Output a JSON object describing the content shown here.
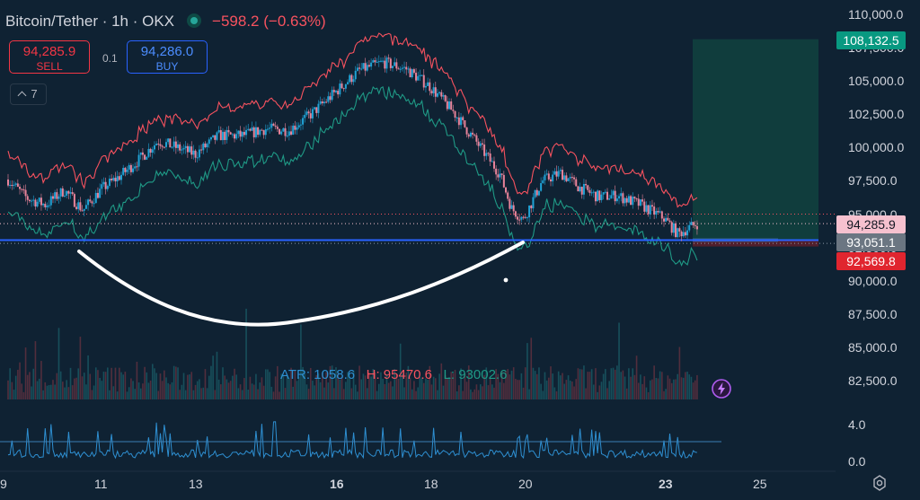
{
  "header": {
    "symbol": "Bitcoin/Tether · 1h · OKX",
    "change": "−598.2 (−0.63%)"
  },
  "trade": {
    "sell_price": "94,285.9",
    "sell_label": "SELL",
    "quantity": "0.1",
    "buy_price": "94,286.0",
    "buy_label": "BUY",
    "indicators_count": "7"
  },
  "y_axis": {
    "ticks": [
      "110,000.0",
      "107,500.0",
      "105,000.0",
      "102,500.0",
      "100,000.0",
      "97,500.0",
      "95,000.0",
      "92,500.0",
      "90,000.0",
      "87,500.0",
      "85,000.0",
      "82,500.0"
    ],
    "osc_ticks": [
      "4.0",
      "0.0"
    ]
  },
  "price_labels": {
    "target": "108,132.5",
    "current": "94,285.9",
    "entry": "93,051.1",
    "stop": "92,569.8"
  },
  "x_axis": {
    "ticks": [
      "9",
      "11",
      "13",
      "16",
      "18",
      "20",
      "23",
      "25"
    ]
  },
  "atr_legend": {
    "atr": "ATR: 1058.6",
    "high": "H: 95470.6",
    "low": "L: 93002.6"
  },
  "colors": {
    "background": "#0f2233",
    "up": "#1fa3d6",
    "down": "#e8839a",
    "upper_band": "#f7525f",
    "lower_band": "#1f9a86",
    "support_line": "#2962ff",
    "target_zone": "#11403e",
    "atr": "#2e8fd1",
    "drawing": "#ffffff"
  },
  "chart_data": {
    "type": "candlestick",
    "symbol": "Bitcoin/Tether",
    "interval": "1h",
    "exchange": "OKX",
    "ylim": [
      80000,
      110000
    ],
    "x_dates": [
      "9",
      "11",
      "13",
      "16",
      "18",
      "20",
      "23",
      "25"
    ],
    "price_path": [
      {
        "x": 9.0,
        "close": 97600
      },
      {
        "x": 9.4,
        "close": 96200
      },
      {
        "x": 9.8,
        "close": 95700
      },
      {
        "x": 10.2,
        "close": 96800
      },
      {
        "x": 10.6,
        "close": 95300
      },
      {
        "x": 11.0,
        "close": 96900
      },
      {
        "x": 11.4,
        "close": 97900
      },
      {
        "x": 11.8,
        "close": 99100
      },
      {
        "x": 12.2,
        "close": 100500
      },
      {
        "x": 12.6,
        "close": 100000
      },
      {
        "x": 13.0,
        "close": 99500
      },
      {
        "x": 13.5,
        "close": 100900
      },
      {
        "x": 14.0,
        "close": 100900
      },
      {
        "x": 14.5,
        "close": 101400
      },
      {
        "x": 15.0,
        "close": 101300
      },
      {
        "x": 15.5,
        "close": 102600
      },
      {
        "x": 16.0,
        "close": 104200
      },
      {
        "x": 16.5,
        "close": 105800
      },
      {
        "x": 17.0,
        "close": 106400
      },
      {
        "x": 17.5,
        "close": 105900
      },
      {
        "x": 18.0,
        "close": 104600
      },
      {
        "x": 18.5,
        "close": 102700
      },
      {
        "x": 19.0,
        "close": 100400
      },
      {
        "x": 19.5,
        "close": 98000
      },
      {
        "x": 19.75,
        "close": 95400
      },
      {
        "x": 20.0,
        "close": 94600
      },
      {
        "x": 20.4,
        "close": 97500
      },
      {
        "x": 20.8,
        "close": 98100
      },
      {
        "x": 21.2,
        "close": 97000
      },
      {
        "x": 21.6,
        "close": 96300
      },
      {
        "x": 22.0,
        "close": 96400
      },
      {
        "x": 22.5,
        "close": 95700
      },
      {
        "x": 23.0,
        "close": 94700
      },
      {
        "x": 23.3,
        "close": 93500
      },
      {
        "x": 23.7,
        "close": 94300
      }
    ],
    "bands": {
      "upper_series": "keltner upper",
      "lower_series": "keltner lower"
    },
    "support_level": 93051.1,
    "current_price": 94285.9,
    "long_position": {
      "entry": 93051.1,
      "target": 108132.5,
      "stop": 92569.8
    },
    "atr": {
      "value": 1058.6,
      "high": 95470.6,
      "low": 93002.6,
      "ylim": [
        0,
        4
      ],
      "threshold": 2.1
    }
  }
}
